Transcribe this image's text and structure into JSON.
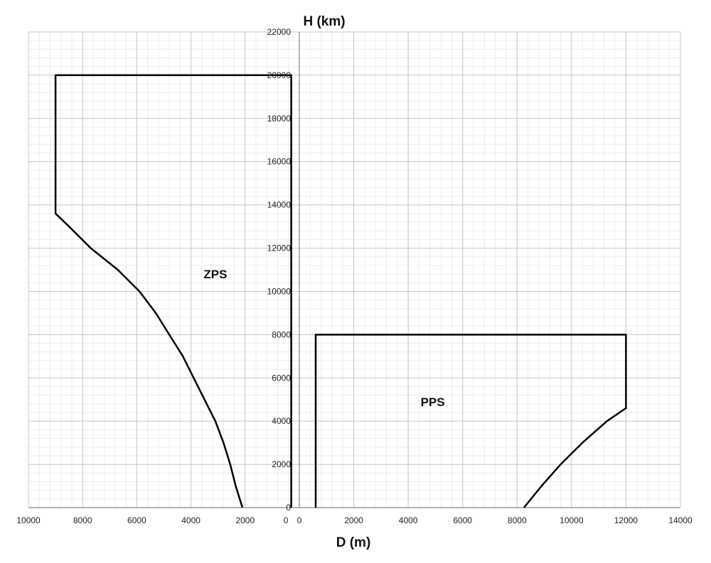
{
  "chart_data": {
    "type": "line",
    "ylabel": "H (km)",
    "xlabel": "D (m)",
    "ylim": [
      0,
      22000
    ],
    "y_ticks": [
      "0",
      "2000",
      "4000",
      "6000",
      "8000",
      "10000",
      "12000",
      "14000",
      "16000",
      "18000",
      "20000",
      "22000"
    ],
    "left_panel": {
      "xlim": [
        10000,
        0
      ],
      "x_ticks": [
        "10000",
        "8000",
        "6000",
        "4000",
        "2000"
      ],
      "zero_label": "0"
    },
    "right_panel": {
      "xlim": [
        0,
        14000
      ],
      "x_ticks": [
        "0",
        "2000",
        "4000",
        "6000",
        "8000",
        "10000",
        "12000",
        "14000"
      ]
    },
    "grid": true,
    "minor_grid": true,
    "series": [
      {
        "name": "ZPS",
        "panel": "left",
        "x": [
          300,
          300,
          9000,
          9000,
          8500,
          7700,
          6700,
          5900,
          5300,
          4800,
          4300,
          3900,
          3500,
          3100,
          2800,
          2550,
          2350,
          2100
        ],
        "y": [
          0,
          20000,
          20000,
          13600,
          13000,
          12000,
          11000,
          10000,
          9000,
          8000,
          7000,
          6000,
          5000,
          4000,
          3000,
          2000,
          1000,
          0
        ]
      },
      {
        "name": "PPS",
        "panel": "right",
        "x": [
          600,
          600,
          12000,
          12000,
          11300,
          10400,
          9600,
          8900,
          8250
        ],
        "y": [
          0,
          8000,
          8000,
          4600,
          4000,
          3000,
          2000,
          1000,
          0
        ]
      }
    ],
    "annotations": [
      {
        "text": "ZPS",
        "panel": "left",
        "x": 3100,
        "y": 10800
      },
      {
        "text": "PPS",
        "panel": "right",
        "x": 4900,
        "y": 4900
      }
    ]
  }
}
